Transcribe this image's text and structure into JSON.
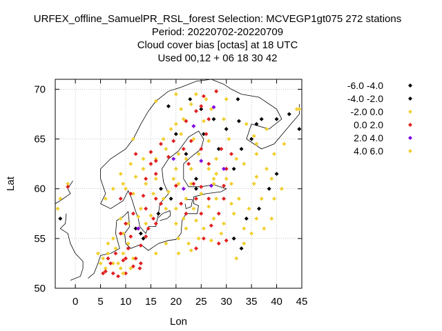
{
  "chart_data": {
    "type": "scatter",
    "title_lines": [
      "URFEX_offline_SamuelPR_RSL_forest   Selection: MCVEGP1gt075    272 stations",
      "Period: 20220702-20220709",
      "Cloud cover bias [octas] at  18 UTC",
      "Used  00,12  + 06 18 30 42"
    ],
    "xlabel": "Lon",
    "ylabel": "Lat",
    "xlim": [
      -4,
      45
    ],
    "ylim": [
      50,
      71
    ],
    "xticks": [
      0,
      5,
      10,
      15,
      20,
      25,
      30,
      35,
      40,
      45
    ],
    "yticks": [
      50,
      55,
      60,
      65,
      70
    ],
    "grid": true,
    "legend_position": "right",
    "series": [
      {
        "name": "-6.0 -4.0",
        "color": "#000000",
        "points": [
          [
            22.8,
            69.0
          ],
          [
            32.3,
            69.0
          ],
          [
            37.0,
            67.0
          ],
          [
            40.0,
            67.0
          ],
          [
            42.5,
            67.5
          ],
          [
            36.0,
            66.5
          ],
          [
            44.5,
            66.0
          ],
          [
            35.0,
            65.0
          ],
          [
            33.0,
            64.0
          ],
          [
            22.0,
            63.5
          ],
          [
            31.5,
            62.0
          ],
          [
            40.0,
            61.5
          ],
          [
            38.5,
            60.0
          ],
          [
            36.5,
            58.0
          ],
          [
            34.0,
            57.0
          ],
          [
            31.5,
            55.0
          ],
          [
            13.5,
            55.0
          ]
        ]
      },
      {
        "name": "-4.0 -2.0",
        "color": "#000000",
        "points": [
          [
            25.0,
            68.0
          ],
          [
            18.5,
            68.3
          ],
          [
            27.5,
            67.0
          ],
          [
            32.5,
            66.8
          ],
          [
            30.0,
            66.0
          ],
          [
            28.5,
            64.0
          ],
          [
            25.5,
            65.5
          ],
          [
            20.0,
            65.5
          ],
          [
            24.0,
            61.0
          ],
          [
            24.0,
            60.0
          ],
          [
            19.0,
            59.0
          ],
          [
            16.5,
            57.5
          ],
          [
            12.0,
            56.0
          ],
          [
            13.0,
            55.5
          ],
          [
            -3.0,
            57.0
          ],
          [
            33.0,
            54.0
          ],
          [
            17.0,
            60.0
          ]
        ]
      },
      {
        "name": "-2.0 0.0",
        "color": "#f0d030",
        "points": [
          [
            16.0,
            68.8
          ],
          [
            20.0,
            69.5
          ],
          [
            24.0,
            69.5
          ],
          [
            26.0,
            69.0
          ],
          [
            28.0,
            69.8
          ],
          [
            30.0,
            69.0
          ],
          [
            27.0,
            68.0
          ],
          [
            29.5,
            67.0
          ],
          [
            21.5,
            67.0
          ],
          [
            25.5,
            66.8
          ],
          [
            34.0,
            66.5
          ],
          [
            38.0,
            66.0
          ],
          [
            19.0,
            66.0
          ],
          [
            21.0,
            65.5
          ],
          [
            23.5,
            65.0
          ],
          [
            26.5,
            64.8
          ],
          [
            30.5,
            65.0
          ],
          [
            36.0,
            64.5
          ],
          [
            41.5,
            64.5
          ],
          [
            39.5,
            63.5
          ],
          [
            18.0,
            64.0
          ],
          [
            20.5,
            63.5
          ],
          [
            24.5,
            63.5
          ],
          [
            28.0,
            63.0
          ],
          [
            32.0,
            63.0
          ],
          [
            36.0,
            63.5
          ],
          [
            13.5,
            63.0
          ],
          [
            16.0,
            63.0
          ],
          [
            11.0,
            62.5
          ],
          [
            13.5,
            62.0
          ],
          [
            20.0,
            62.0
          ],
          [
            23.0,
            62.0
          ],
          [
            26.5,
            62.0
          ],
          [
            33.5,
            62.5
          ],
          [
            38.0,
            62.0
          ],
          [
            9.0,
            61.5
          ],
          [
            12.0,
            61.2
          ],
          [
            16.0,
            61.0
          ],
          [
            19.5,
            61.0
          ],
          [
            27.5,
            61.0
          ],
          [
            30.0,
            61.0
          ],
          [
            39.0,
            61.0
          ],
          [
            9.5,
            60.5
          ],
          [
            14.0,
            60.5
          ],
          [
            20.5,
            60.5
          ],
          [
            23.0,
            60.5
          ],
          [
            27.5,
            60.5
          ],
          [
            31.0,
            60.5
          ],
          [
            35.5,
            60.5
          ],
          [
            41.0,
            60.0
          ],
          [
            7.5,
            60.0
          ],
          [
            11.5,
            59.5
          ],
          [
            15.5,
            59.5
          ],
          [
            17.5,
            59.0
          ],
          [
            22.0,
            59.0
          ],
          [
            25.0,
            59.5
          ],
          [
            28.0,
            59.0
          ],
          [
            32.5,
            59.0
          ],
          [
            37.0,
            59.0
          ],
          [
            39.5,
            59.0
          ],
          [
            6.0,
            59.0
          ],
          [
            13.0,
            58.0
          ],
          [
            18.0,
            58.0
          ],
          [
            20.0,
            58.0
          ],
          [
            23.5,
            58.0
          ],
          [
            26.5,
            58.2
          ],
          [
            31.0,
            58.5
          ],
          [
            34.5,
            58.0
          ],
          [
            12.5,
            57.2
          ],
          [
            15.0,
            57.3
          ],
          [
            21.5,
            57.0
          ],
          [
            24.0,
            56.8
          ],
          [
            27.5,
            57.0
          ],
          [
            29.5,
            56.5
          ],
          [
            31.5,
            57.5
          ],
          [
            36.0,
            57.0
          ],
          [
            39.0,
            57.0
          ],
          [
            9.0,
            57.0
          ],
          [
            10.5,
            56.5
          ],
          [
            14.0,
            56.5
          ],
          [
            22.0,
            56.0
          ],
          [
            25.5,
            56.0
          ],
          [
            29.0,
            55.5
          ],
          [
            33.5,
            56.0
          ],
          [
            37.5,
            56.0
          ],
          [
            9.5,
            55.5
          ],
          [
            20.5,
            55.0
          ],
          [
            24.5,
            55.0
          ],
          [
            27.0,
            54.8
          ],
          [
            35.0,
            55.5
          ],
          [
            8.0,
            54.0
          ],
          [
            10.5,
            54.5
          ],
          [
            18.0,
            54.5
          ],
          [
            22.5,
            54.5
          ],
          [
            33.5,
            54.5
          ],
          [
            6.5,
            53.5
          ],
          [
            9.5,
            53.5
          ],
          [
            11.5,
            53.0
          ],
          [
            16.0,
            53.5
          ],
          [
            20.5,
            53.5
          ],
          [
            23.0,
            53.8
          ],
          [
            32.0,
            53.0
          ],
          [
            5.0,
            52.5
          ],
          [
            7.5,
            52.5
          ],
          [
            9.0,
            52.0
          ],
          [
            6.0,
            52.0
          ],
          [
            -1.5,
            60.5
          ],
          [
            -3.0,
            59.0
          ],
          [
            44.5,
            68.0
          ]
        ]
      },
      {
        "name": "0.0 2.0",
        "color": "#e02020",
        "points": [
          [
            28.0,
            69.8
          ],
          [
            25.5,
            69.3
          ],
          [
            25.0,
            68.3
          ],
          [
            24.0,
            67.8
          ],
          [
            26.5,
            67.0
          ],
          [
            22.0,
            66.8
          ],
          [
            19.5,
            64.8
          ],
          [
            23.0,
            64.8
          ],
          [
            26.0,
            65.5
          ],
          [
            17.0,
            64.5
          ],
          [
            21.5,
            64.0
          ],
          [
            25.0,
            64.0
          ],
          [
            29.0,
            64.0
          ],
          [
            31.0,
            63.5
          ],
          [
            12.0,
            63.5
          ],
          [
            15.0,
            63.7
          ],
          [
            18.5,
            63.2
          ],
          [
            22.5,
            62.5
          ],
          [
            26.5,
            62.5
          ],
          [
            30.0,
            62.0
          ],
          [
            15.0,
            62.5
          ],
          [
            16.0,
            61.5
          ],
          [
            14.0,
            61.0
          ],
          [
            20.0,
            60.3
          ],
          [
            23.5,
            60.5
          ],
          [
            25.0,
            60.2
          ],
          [
            29.5,
            60.3
          ],
          [
            -1.5,
            60.2
          ],
          [
            13.5,
            59.3
          ],
          [
            11.0,
            59.5
          ],
          [
            9.0,
            59.0
          ],
          [
            16.0,
            59.0
          ],
          [
            17.0,
            58.5
          ],
          [
            21.0,
            58.5
          ],
          [
            24.0,
            59.0
          ],
          [
            26.5,
            59.0
          ],
          [
            29.5,
            59.0
          ],
          [
            14.0,
            58.0
          ],
          [
            11.5,
            57.5
          ],
          [
            15.5,
            57.0
          ],
          [
            22.0,
            57.5
          ],
          [
            25.0,
            57.5
          ],
          [
            28.5,
            57.5
          ],
          [
            10.0,
            56.5
          ],
          [
            12.5,
            56.0
          ],
          [
            14.5,
            56.0
          ],
          [
            16.0,
            56.5
          ],
          [
            27.0,
            56.3
          ],
          [
            9.0,
            55.5
          ],
          [
            11.0,
            55.2
          ],
          [
            14.0,
            55.2
          ],
          [
            25.5,
            55.0
          ],
          [
            28.5,
            54.5
          ],
          [
            30.0,
            54.8
          ],
          [
            10.5,
            54.0
          ],
          [
            13.0,
            54.3
          ],
          [
            24.0,
            54.0
          ],
          [
            8.0,
            53.5
          ],
          [
            12.0,
            53.0
          ],
          [
            7.0,
            52.5
          ],
          [
            9.5,
            52.8
          ],
          [
            11.5,
            52.2
          ],
          [
            13.0,
            52.5
          ],
          [
            5.5,
            51.5
          ],
          [
            6.0,
            51.7
          ],
          [
            7.5,
            51.5
          ],
          [
            8.5,
            51.2
          ],
          [
            10.0,
            51.5
          ],
          [
            12.8,
            52.0
          ],
          [
            10.0,
            53.0
          ],
          [
            6.5,
            53.0
          ],
          [
            16.0,
            62.8
          ]
        ]
      },
      {
        "name": "2.0 4.0",
        "color": "#8000e0",
        "points": [
          [
            27.5,
            68.2
          ],
          [
            23.5,
            66.3
          ],
          [
            19.5,
            63.0
          ],
          [
            25.0,
            62.8
          ],
          [
            21.5,
            60.0
          ],
          [
            27.0,
            60.3
          ],
          [
            29.5,
            62.0
          ],
          [
            12.5,
            56.0
          ]
        ]
      },
      {
        "name": "4.0 6.0",
        "color": "#f0d030",
        "points": [
          [
            44.0,
            68.0
          ],
          [
            23.0,
            68.5
          ],
          [
            21.0,
            68.0
          ],
          [
            35.5,
            65.3
          ],
          [
            11.5,
            65.0
          ],
          [
            17.5,
            65.0
          ],
          [
            20.0,
            66.5
          ],
          [
            22.0,
            63.0
          ],
          [
            28.0,
            61.5
          ],
          [
            36.0,
            61.2
          ],
          [
            10.0,
            60.0
          ],
          [
            18.5,
            59.7
          ],
          [
            20.0,
            56.5
          ],
          [
            7.5,
            55.0
          ],
          [
            6.5,
            54.5
          ],
          [
            4.5,
            53.5
          ],
          [
            5.5,
            53.0
          ],
          [
            8.5,
            52.5
          ],
          [
            9.5,
            51.5
          ],
          [
            11.0,
            52.0
          ],
          [
            -3.5,
            58.0
          ]
        ]
      }
    ]
  }
}
